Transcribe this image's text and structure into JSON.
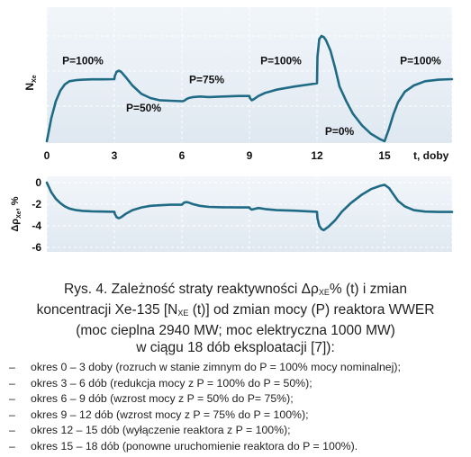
{
  "chart_data": [
    {
      "type": "line",
      "ylabel": "N",
      "ylabel_sub": "Xe",
      "xlabel": "t, doby",
      "xlim": [
        0,
        18
      ],
      "x_ticks": [
        "0",
        "3",
        "6",
        "9",
        "12",
        "15"
      ],
      "grid": true,
      "annotations": [
        {
          "text": "P=100%",
          "x": 1.6,
          "y": 0.73
        },
        {
          "text": "P=50%",
          "x": 4.3,
          "y": 0.28
        },
        {
          "text": "P=75%",
          "x": 7.1,
          "y": 0.55
        },
        {
          "text": "P=100%",
          "x": 10.4,
          "y": 0.73
        },
        {
          "text": "P=0%",
          "x": 13.0,
          "y": 0.06
        },
        {
          "text": "P=100%",
          "x": 16.6,
          "y": 0.73
        }
      ],
      "series": [
        {
          "x": [
            0,
            0.2,
            0.4,
            0.6,
            0.8,
            1.0,
            1.3,
            1.6,
            2.0,
            2.5,
            3.0,
            3.02,
            3.1,
            3.2,
            3.3,
            3.5,
            3.8,
            4.2,
            4.6,
            5.0,
            5.5,
            6.0,
            6.02,
            6.1,
            6.2,
            6.3,
            6.5,
            6.8,
            7.2,
            7.8,
            8.5,
            9.0,
            9.02,
            9.1,
            9.2,
            9.4,
            9.7,
            10.2,
            11.0,
            12.0,
            12.02,
            12.1,
            12.2,
            12.3,
            12.4,
            12.6,
            12.8,
            13.0,
            13.3,
            13.6,
            14.0,
            14.4,
            14.8,
            15.0,
            15.2,
            15.4,
            15.6,
            15.9,
            16.3,
            16.8,
            17.4,
            18.0
          ],
          "y": [
            0.0,
            0.22,
            0.38,
            0.48,
            0.54,
            0.57,
            0.58,
            0.585,
            0.588,
            0.588,
            0.59,
            0.62,
            0.66,
            0.67,
            0.66,
            0.61,
            0.53,
            0.45,
            0.41,
            0.39,
            0.385,
            0.38,
            0.38,
            0.385,
            0.4,
            0.41,
            0.42,
            0.425,
            0.42,
            0.425,
            0.43,
            0.43,
            0.41,
            0.39,
            0.4,
            0.43,
            0.46,
            0.49,
            0.52,
            0.55,
            0.8,
            0.97,
            1.0,
            0.99,
            0.96,
            0.86,
            0.7,
            0.52,
            0.38,
            0.26,
            0.15,
            0.07,
            0.02,
            0.0,
            0.12,
            0.26,
            0.37,
            0.47,
            0.53,
            0.57,
            0.585,
            0.59
          ]
        }
      ]
    },
    {
      "type": "line",
      "ylabel": "Δρ",
      "ylabel_sub": "Xe",
      "ylabel_suffix": ", %",
      "xlim": [
        0,
        18
      ],
      "ylim": [
        -6,
        0
      ],
      "y_ticks": [
        0,
        -2,
        -4,
        -6
      ],
      "grid": true,
      "series": [
        {
          "x": [
            0,
            0.2,
            0.4,
            0.6,
            0.8,
            1.0,
            1.3,
            1.6,
            2.0,
            2.5,
            3.0,
            3.02,
            3.1,
            3.2,
            3.3,
            3.5,
            3.8,
            4.2,
            4.6,
            5.0,
            5.5,
            6.0,
            6.02,
            6.1,
            6.2,
            6.3,
            6.5,
            6.8,
            7.2,
            7.8,
            8.5,
            9.0,
            9.02,
            9.1,
            9.2,
            9.4,
            9.7,
            10.2,
            11.0,
            12.0,
            12.02,
            12.1,
            12.2,
            12.3,
            12.5,
            12.8,
            13.1,
            13.5,
            14.0,
            14.4,
            14.8,
            15.0,
            15.2,
            15.4,
            15.6,
            15.9,
            16.3,
            16.8,
            17.4,
            18.0
          ],
          "y": [
            0.0,
            -0.9,
            -1.5,
            -1.9,
            -2.2,
            -2.4,
            -2.55,
            -2.62,
            -2.66,
            -2.68,
            -2.7,
            -2.9,
            -3.2,
            -3.3,
            -3.2,
            -2.9,
            -2.55,
            -2.3,
            -2.15,
            -2.1,
            -2.05,
            -2.05,
            -2.0,
            -1.85,
            -1.8,
            -1.85,
            -2.0,
            -2.15,
            -2.25,
            -2.28,
            -2.3,
            -2.3,
            -2.4,
            -2.5,
            -2.45,
            -2.35,
            -2.45,
            -2.55,
            -2.6,
            -2.7,
            -3.3,
            -4.0,
            -4.3,
            -4.4,
            -4.1,
            -3.5,
            -2.7,
            -1.9,
            -1.1,
            -0.6,
            -0.3,
            -0.2,
            -0.5,
            -1.1,
            -1.7,
            -2.2,
            -2.55,
            -2.68,
            -2.72,
            -2.72
          ]
        }
      ]
    }
  ],
  "caption": {
    "line1_pre": "Rys. 4. Zależność straty reaktywności ",
    "symbol": "Δρ",
    "sub": "XE",
    "line1_post": "% (t)  i zmian",
    "line2_pre": "koncentracji Xe-135 [N",
    "line2_sub": "XE",
    "line2_post": " (t)] od zmian mocy (P) reaktora WWER",
    "line3": "(moc cieplna 2940 MW; moc elektryczna 1000 MW)",
    "line4": "w ciągu 18 dób eksploatacji [7]):"
  },
  "bullets": [
    {
      "dash": "–",
      "text": "okres 0 – 3 doby (rozruch w stanie zimnym do P = 100% mocy nominalnej);"
    },
    {
      "dash": "–",
      "text": "okres 3 – 6 dób (redukcja mocy z P = 100% do P = 50%);"
    },
    {
      "dash": "–",
      "text": "okres 6 – 9 dób (wzrost mocy z P = 50% do P= 75%);"
    },
    {
      "dash": "–",
      "text": "okres 9 – 12 dób (wzrost mocy z P = 75% do P = 100%);"
    },
    {
      "dash": "–",
      "text": "okres 12 – 15 dób (wyłączenie reaktora z P = 100%);"
    },
    {
      "dash": "–",
      "text": "okres 15 – 18 dób (ponowne uruchomienie reaktora do P = 100%)."
    }
  ],
  "colors": {
    "curve": "#1f6b86",
    "panel_top": "#f2f6fa",
    "panel_bottom": "#dfe8f1",
    "grid": "#ffffff"
  }
}
